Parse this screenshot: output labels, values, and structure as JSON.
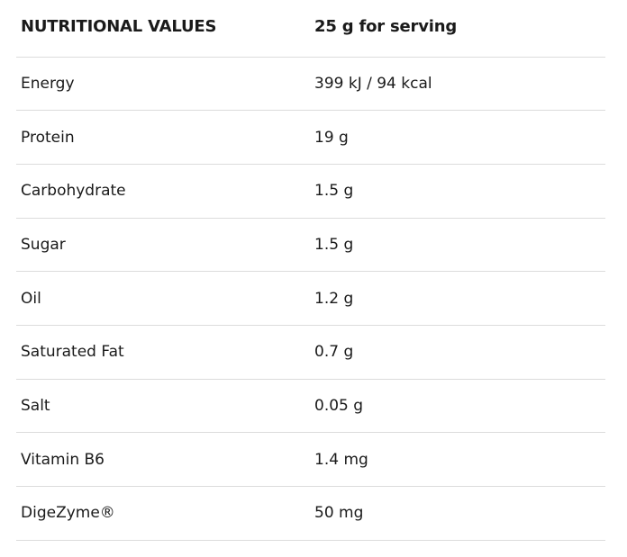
{
  "header": {
    "label": "NUTRITIONAL VALUES",
    "value": "25 g for serving"
  },
  "rows": [
    {
      "label": "Energy",
      "value": "399 kJ / 94 kcal"
    },
    {
      "label": "Protein",
      "value": "19 g"
    },
    {
      "label": "Carbohydrate",
      "value": "1.5 g"
    },
    {
      "label": "Sugar",
      "value": "1.5 g"
    },
    {
      "label": "Oil",
      "value": "1.2 g"
    },
    {
      "label": "Saturated Fat",
      "value": "0.7 g"
    },
    {
      "label": "Salt",
      "value": "0.05 g"
    },
    {
      "label": "Vitamin B6",
      "value": "1.4 mg"
    },
    {
      "label": "DigeZyme®",
      "value": "50 mg"
    }
  ]
}
